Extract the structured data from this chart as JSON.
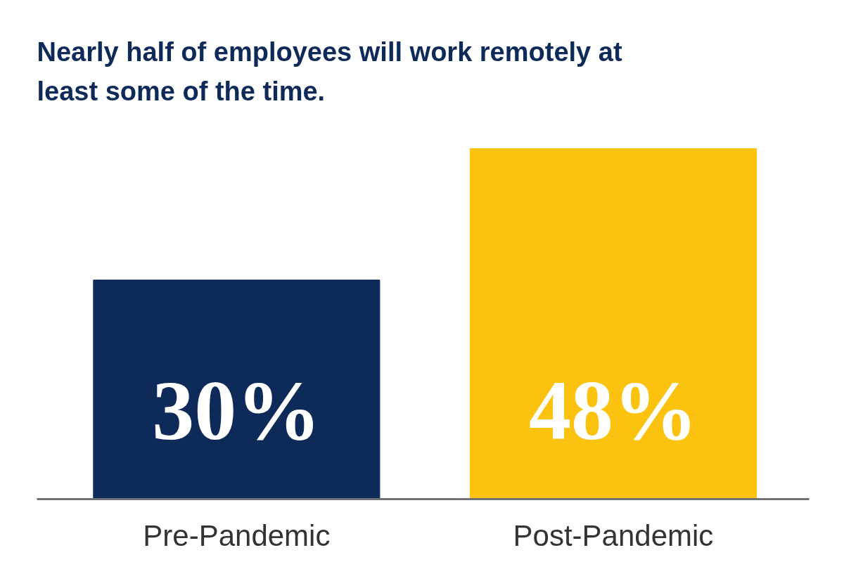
{
  "chart_data": {
    "type": "bar",
    "title": "Nearly half of employees will work remotely at least some of the time.",
    "categories": [
      "Pre-Pandemic",
      "Post-Pandemic"
    ],
    "values": [
      30,
      48
    ],
    "colors": [
      "#0d2a58",
      "#fcc210"
    ],
    "value_labels": [
      "30%",
      "48%"
    ],
    "grid": false
  }
}
